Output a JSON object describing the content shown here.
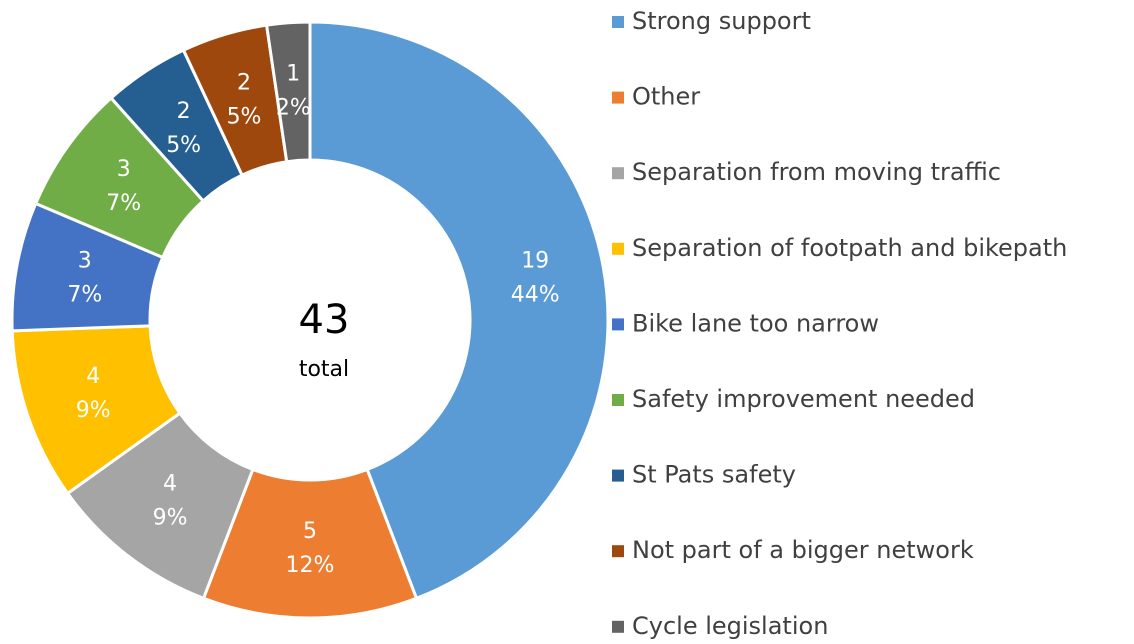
{
  "chart_data": {
    "type": "donut",
    "categories": [
      "Strong support",
      "Other",
      "Separation from moving traffic",
      "Separation of footpath and bikepath",
      "Bike lane too narrow",
      "Safety improvement needed",
      "St Pats safety",
      "Not part of a bigger network",
      "Cycle legislation"
    ],
    "values": [
      19,
      5,
      4,
      4,
      3,
      3,
      2,
      2,
      1
    ],
    "percent_labels": [
      "44%",
      "12%",
      "9%",
      "9%",
      "7%",
      "7%",
      "5%",
      "5%",
      "2%"
    ],
    "colors": [
      "#5b9bd5",
      "#ed7d31",
      "#a5a5a5",
      "#ffc000",
      "#4472c4",
      "#70ad47",
      "#255e91",
      "#9e480e",
      "#636363"
    ],
    "total": 43,
    "total_label": "total",
    "legend": "right"
  }
}
